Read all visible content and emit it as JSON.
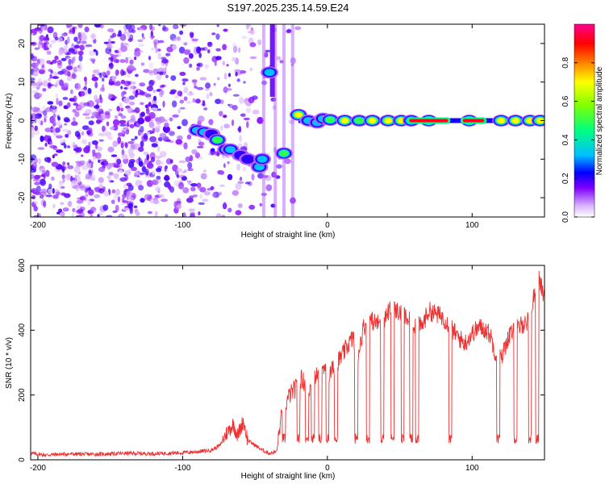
{
  "chart_data": [
    {
      "type": "heatmap",
      "title": "S197.2025.235.14.59.E24",
      "xlabel": "Height of straight line (km)",
      "ylabel": "Frequency (Hz)",
      "xlim": [
        -205,
        150
      ],
      "ylim": [
        -25,
        25
      ],
      "x_ticks": [
        -200,
        -100,
        0,
        100
      ],
      "y_ticks": [
        -20,
        -10,
        0,
        10,
        20
      ],
      "colorbar": {
        "label": "Normalized spectral amplitude",
        "ticks": [
          "0.0",
          "0.2",
          "0.4",
          "0.6",
          "0.8"
        ],
        "range": [
          0,
          1
        ],
        "colors": [
          "#ffffff",
          "#c080ff",
          "#8000ff",
          "#0000ff",
          "#00c0ff",
          "#00ff80",
          "#80ff00",
          "#ffff00",
          "#ff8000",
          "#ff0000",
          "#ff0080"
        ]
      },
      "blobs": [
        {
          "x": -90,
          "y": -2.5,
          "v": 0.35
        },
        {
          "x": -85,
          "y": -3,
          "v": 0.3
        },
        {
          "x": -80,
          "y": -3.5,
          "v": 0.25
        },
        {
          "x": -76,
          "y": -5,
          "v": 0.5
        },
        {
          "x": -70,
          "y": -7.5,
          "v": 0.35
        },
        {
          "x": -67,
          "y": -7.5,
          "v": 0.3
        },
        {
          "x": -60,
          "y": -9,
          "v": 0.2
        },
        {
          "x": -55,
          "y": -10,
          "v": 0.2
        },
        {
          "x": -47,
          "y": -12,
          "v": 0.35
        },
        {
          "x": -45,
          "y": -10,
          "v": 0.3
        },
        {
          "x": -40,
          "y": 12.5,
          "v": 0.3
        },
        {
          "x": -30,
          "y": -8.5,
          "v": 0.5
        },
        {
          "x": -20,
          "y": 1.5,
          "v": 0.75
        },
        {
          "x": -13,
          "y": 0,
          "v": 0.35
        },
        {
          "x": -7,
          "y": -0.5,
          "v": 0.3
        },
        {
          "x": -3,
          "y": 0.5,
          "v": 0.4
        },
        {
          "x": 2,
          "y": 0.2,
          "v": 0.6
        },
        {
          "x": 12,
          "y": 0,
          "v": 0.75
        },
        {
          "x": 22,
          "y": 0,
          "v": 0.55
        },
        {
          "x": 31,
          "y": 0,
          "v": 0.8
        },
        {
          "x": 42,
          "y": 0,
          "v": 0.85
        },
        {
          "x": 51,
          "y": 0,
          "v": 0.85
        },
        {
          "x": 58,
          "y": 0,
          "v": 0.65
        },
        {
          "x": 70,
          "y": 0,
          "v": 0.9
        },
        {
          "x": 98,
          "y": 0,
          "v": 0.9
        },
        {
          "x": 120,
          "y": 0,
          "v": 0.8
        },
        {
          "x": 130,
          "y": 0,
          "v": 0.85
        },
        {
          "x": 140,
          "y": 0,
          "v": 0.85
        },
        {
          "x": 147,
          "y": 0,
          "v": 0.8
        }
      ]
    },
    {
      "type": "line",
      "xlabel": "Height of straight line (km)",
      "ylabel": "SNR (10 * v/v)",
      "xlim": [
        -205,
        150
      ],
      "ylim": [
        0,
        600
      ],
      "x_ticks": [
        -200,
        -100,
        0,
        100
      ],
      "y_ticks": [
        0,
        200,
        400,
        600
      ],
      "series": [
        {
          "name": "SNR",
          "color": "#ee3030",
          "x": [
            -205,
            -195,
            -180,
            -160,
            -140,
            -120,
            -100,
            -90,
            -80,
            -74,
            -70,
            -65,
            -62,
            -58,
            -55,
            -50,
            -45,
            -40,
            -35,
            -32,
            -29,
            -26,
            -22,
            -18,
            -14,
            -10,
            -8,
            -5,
            -2,
            0,
            5,
            10,
            15,
            18,
            20,
            25,
            30,
            35,
            40,
            44,
            48,
            52,
            56,
            60,
            65,
            70,
            75,
            80,
            85,
            90,
            95,
            100,
            105,
            110,
            113,
            116,
            120,
            125,
            130,
            135,
            140,
            143,
            146,
            150
          ],
          "y": [
            20,
            15,
            18,
            17,
            20,
            19,
            22,
            25,
            30,
            45,
            80,
            110,
            75,
            120,
            60,
            45,
            30,
            20,
            25,
            130,
            170,
            200,
            220,
            250,
            230,
            210,
            270,
            250,
            280,
            250,
            290,
            320,
            360,
            380,
            300,
            410,
            430,
            420,
            440,
            470,
            460,
            450,
            430,
            420,
            410,
            460,
            450,
            440,
            410,
            380,
            360,
            390,
            410,
            400,
            380,
            330,
            310,
            380,
            400,
            420,
            430,
            520,
            560,
            500
          ]
        }
      ],
      "dips_x": [
        -30,
        -20,
        -14,
        -10,
        -5,
        0,
        6,
        20,
        28,
        38,
        45,
        52,
        58,
        62,
        85,
        118,
        130,
        140,
        145
      ]
    }
  ]
}
